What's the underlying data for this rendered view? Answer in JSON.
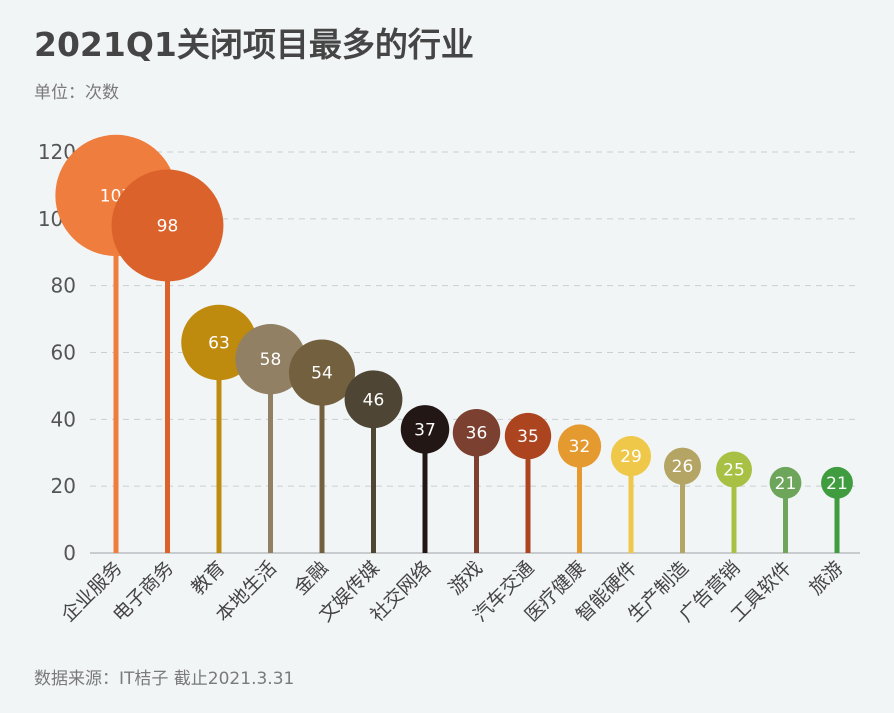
{
  "title": "2021Q1关闭项目最多的行业",
  "subtitle": "单位：次数",
  "source": "数据来源：IT桔子 截止2021.3.31",
  "chart_data": {
    "type": "lollipop-bubble",
    "title": "2021Q1关闭项目最多的行业",
    "ylabel": "单位：次数",
    "ylim": [
      0,
      120
    ],
    "yticks": [
      0,
      20,
      40,
      60,
      80,
      100,
      120
    ],
    "grid": true,
    "categories": [
      "企业服务",
      "电子商务",
      "教育",
      "本地生活",
      "金融",
      "文娱传媒",
      "社交网络",
      "游戏",
      "汽车交通",
      "医疗健康",
      "智能硬件",
      "生产制造",
      "广告营销",
      "工具软件",
      "旅游"
    ],
    "values": [
      107,
      98,
      63,
      58,
      54,
      46,
      37,
      36,
      35,
      32,
      29,
      26,
      25,
      21,
      21
    ],
    "colors": [
      "#ef7d3e",
      "#db632b",
      "#bf8b0f",
      "#918064",
      "#73603e",
      "#4e4535",
      "#221714",
      "#7b4030",
      "#ad4420",
      "#e59a30",
      "#efc84a",
      "#b5a564",
      "#a8c144",
      "#6da65a",
      "#3f9c3f"
    ]
  }
}
